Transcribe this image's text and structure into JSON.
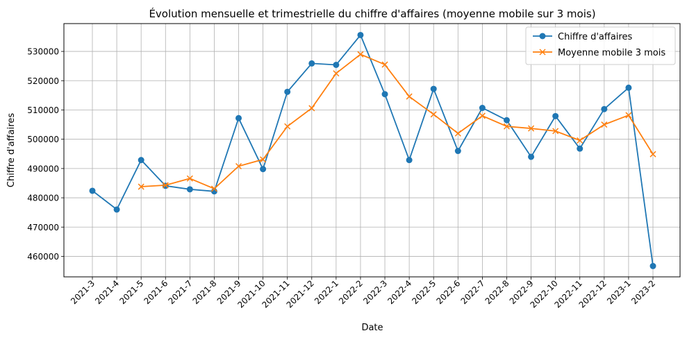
{
  "chart_data": {
    "type": "line",
    "title": "Évolution mensuelle et trimestrielle du chiffre d'affaires (moyenne mobile sur 3 mois)",
    "xlabel": "Date",
    "ylabel": "Chiffre d'affaires",
    "categories": [
      "2021-3",
      "2021-4",
      "2021-5",
      "2021-6",
      "2021-7",
      "2021-8",
      "2021-9",
      "2021-10",
      "2021-11",
      "2021-12",
      "2022-1",
      "2022-2",
      "2022-3",
      "2022-4",
      "2022-5",
      "2022-6",
      "2022-7",
      "2022-8",
      "2022-9",
      "2022-10",
      "2022-11",
      "2022-12",
      "2023-1",
      "2023-2"
    ],
    "yticks": [
      460000,
      470000,
      480000,
      490000,
      500000,
      510000,
      520000,
      530000
    ],
    "ylim": [
      453000,
      539500
    ],
    "grid": true,
    "legend_position": "top-right",
    "series": [
      {
        "name": "Chiffre d'affaires",
        "color": "#1f77b4",
        "marker": "circle",
        "values": [
          482400,
          476000,
          492900,
          484100,
          482900,
          482200,
          507200,
          489800,
          516200,
          525900,
          525400,
          535600,
          515400,
          492900,
          517200,
          496000,
          510700,
          506500,
          494000,
          507900,
          496800,
          510300,
          517600,
          456700
        ]
      },
      {
        "name": "Moyenne mobile 3 mois",
        "color": "#ff7f0e",
        "marker": "x",
        "values": [
          null,
          null,
          483800,
          484300,
          486600,
          483100,
          490800,
          493100,
          504400,
          510600,
          522500,
          529000,
          525500,
          514600,
          508500,
          502000,
          508000,
          504400,
          503700,
          502800,
          499600,
          505000,
          508200,
          494900
        ]
      }
    ]
  }
}
